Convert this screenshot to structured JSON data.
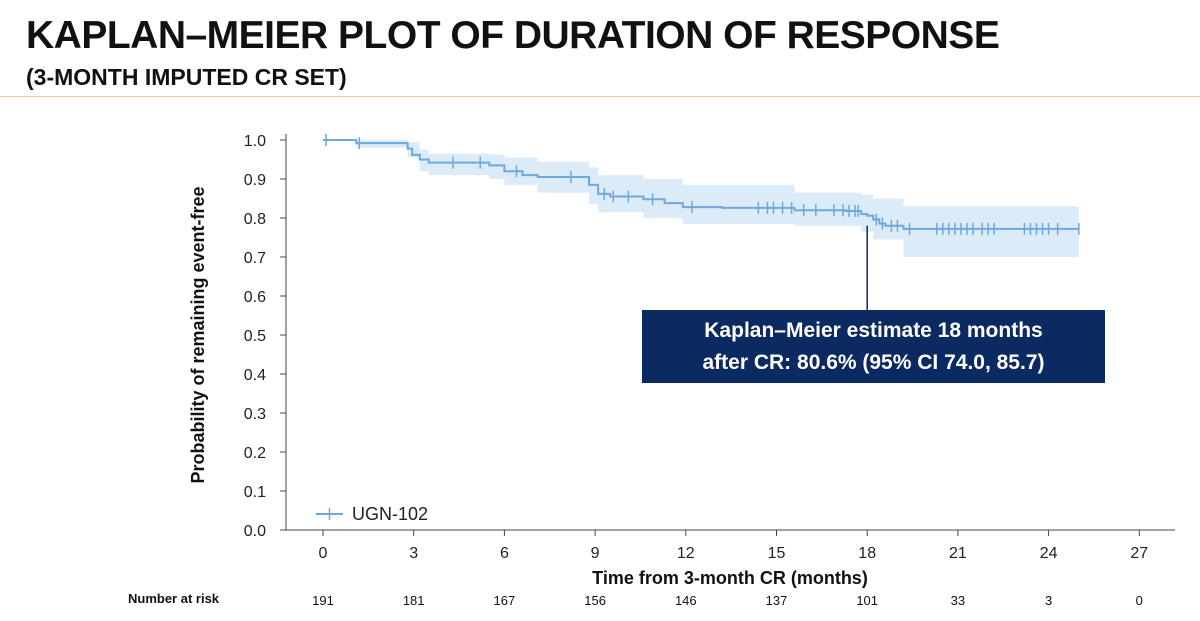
{
  "slide": {
    "title": "KAPLAN–MEIER PLOT OF DURATION OF RESPONSE",
    "subtitle": "(3-MONTH IMPUTED CR SET)"
  },
  "chart_data": {
    "type": "line",
    "title": "",
    "xlabel": "Time from 3-month CR (months)",
    "ylabel": "Probability of remaining event-free",
    "xlim": [
      0,
      27
    ],
    "ylim": [
      0,
      1
    ],
    "x_ticks": [
      0,
      3,
      6,
      9,
      12,
      15,
      18,
      21,
      24,
      27
    ],
    "y_ticks": [
      0.0,
      0.1,
      0.2,
      0.3,
      0.4,
      0.5,
      0.6,
      0.7,
      0.8,
      0.9,
      1.0
    ],
    "y_tick_labels": [
      "0.0",
      "0.1",
      "0.2",
      "0.3",
      "0.4",
      "0.5",
      "0.6",
      "0.7",
      "0.8",
      "0.9",
      "1.0"
    ],
    "grid": false,
    "legend": {
      "position": "bottom-left",
      "entries": [
        "UGN-102"
      ]
    },
    "colors": {
      "series": "#6fa8dc",
      "band": "#dcebf8",
      "annotation_bg": "#0c2a62"
    },
    "series": [
      {
        "name": "UGN-102",
        "steps": [
          [
            0,
            1.0
          ],
          [
            1.1,
            0.992
          ],
          [
            2.8,
            0.978
          ],
          [
            2.95,
            0.962
          ],
          [
            3.2,
            0.95
          ],
          [
            3.5,
            0.942
          ],
          [
            5.5,
            0.935
          ],
          [
            6.0,
            0.92
          ],
          [
            6.6,
            0.91
          ],
          [
            7.1,
            0.905
          ],
          [
            8.8,
            0.885
          ],
          [
            9.1,
            0.862
          ],
          [
            9.5,
            0.855
          ],
          [
            10.6,
            0.848
          ],
          [
            11.3,
            0.838
          ],
          [
            11.9,
            0.828
          ],
          [
            13.2,
            0.826
          ],
          [
            15.6,
            0.82
          ],
          [
            17.3,
            0.818
          ],
          [
            17.8,
            0.81
          ],
          [
            18.0,
            0.806
          ],
          [
            18.2,
            0.796
          ],
          [
            18.4,
            0.786
          ],
          [
            18.6,
            0.78
          ],
          [
            19.2,
            0.772
          ],
          [
            25.0,
            0.772
          ]
        ],
        "ci_lower": [
          [
            0,
            1.0
          ],
          [
            1.1,
            0.98
          ],
          [
            2.8,
            0.955
          ],
          [
            3.2,
            0.92
          ],
          [
            3.5,
            0.91
          ],
          [
            5.5,
            0.9
          ],
          [
            6.0,
            0.885
          ],
          [
            7.1,
            0.865
          ],
          [
            8.8,
            0.835
          ],
          [
            9.1,
            0.815
          ],
          [
            10.6,
            0.8
          ],
          [
            11.9,
            0.785
          ],
          [
            15.6,
            0.78
          ],
          [
            17.8,
            0.765
          ],
          [
            18.2,
            0.745
          ],
          [
            19.2,
            0.7
          ],
          [
            25.0,
            0.7
          ]
        ],
        "ci_upper": [
          [
            0,
            1.0
          ],
          [
            1.1,
            1.0
          ],
          [
            2.8,
            0.995
          ],
          [
            3.2,
            0.975
          ],
          [
            3.5,
            0.965
          ],
          [
            5.5,
            0.963
          ],
          [
            6.0,
            0.955
          ],
          [
            7.1,
            0.945
          ],
          [
            8.8,
            0.93
          ],
          [
            9.1,
            0.91
          ],
          [
            10.6,
            0.9
          ],
          [
            11.9,
            0.885
          ],
          [
            15.6,
            0.865
          ],
          [
            17.8,
            0.86
          ],
          [
            18.2,
            0.85
          ],
          [
            19.2,
            0.83
          ],
          [
            25.0,
            0.83
          ]
        ],
        "censored": [
          0.1,
          1.2,
          4.3,
          5.2,
          6.4,
          8.2,
          9.3,
          9.6,
          10.1,
          10.9,
          12.2,
          14.4,
          14.7,
          14.9,
          15.2,
          15.5,
          15.9,
          16.3,
          16.9,
          17.2,
          17.4,
          17.6,
          17.7,
          18.3,
          18.5,
          18.8,
          19.0,
          19.4,
          20.3,
          20.5,
          20.7,
          20.9,
          21.1,
          21.3,
          21.5,
          21.8,
          22.0,
          22.2,
          23.2,
          23.4,
          23.6,
          23.8,
          24.0,
          24.3,
          25.0
        ]
      }
    ],
    "annotation": {
      "line1": "Kaplan–Meier estimate 18 months",
      "line2": "after CR: 80.6% (95% CI 74.0, 85.7)",
      "x": 18.0
    },
    "number_at_risk": {
      "label": "Number at risk",
      "times": [
        0,
        3,
        6,
        9,
        12,
        15,
        18,
        21,
        24,
        27
      ],
      "values": [
        "191",
        "181",
        "167",
        "156",
        "146",
        "137",
        "101",
        "33",
        "3",
        "0"
      ]
    }
  }
}
